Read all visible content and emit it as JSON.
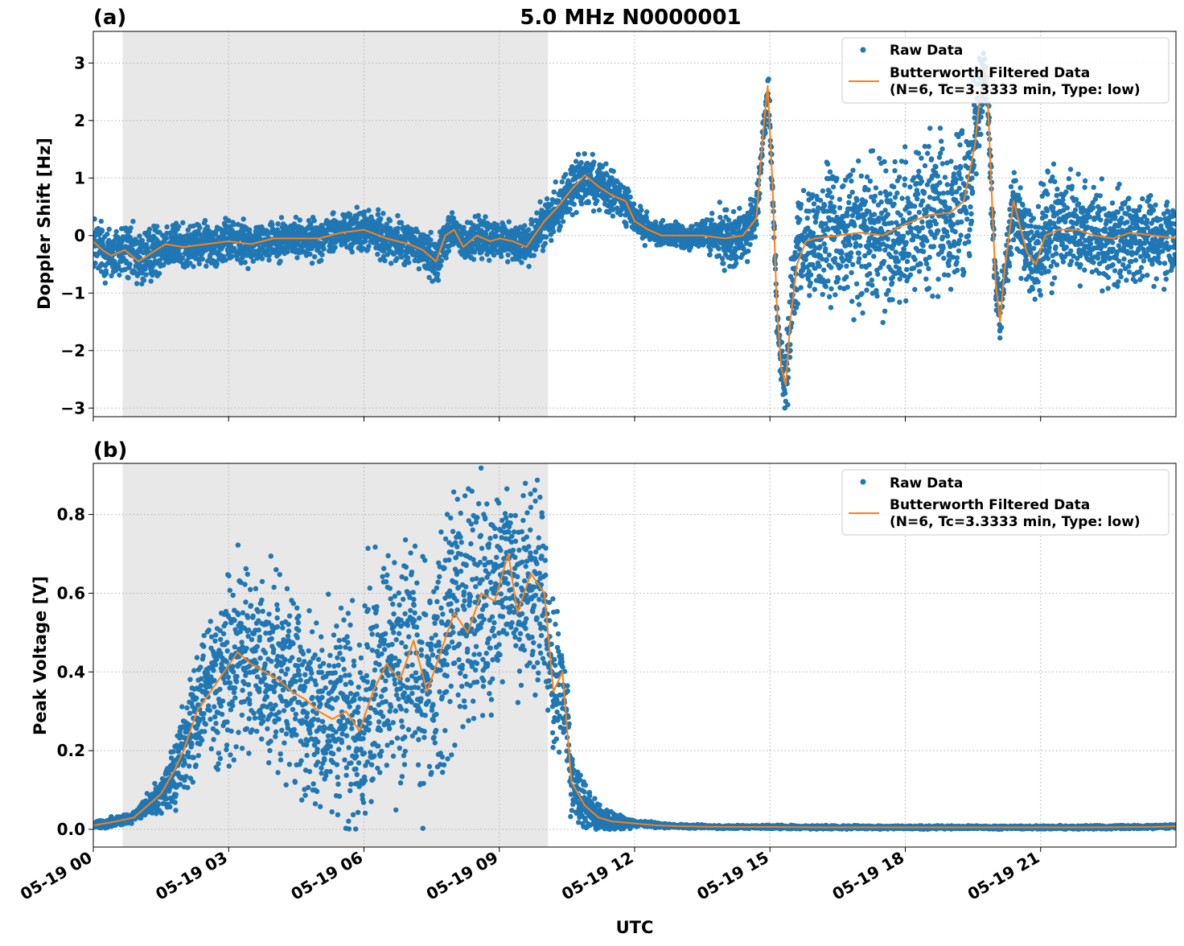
{
  "title": "5.0 MHz N0000001",
  "colors": {
    "raw": "#1f77b4",
    "filtered": "#ff7f0e",
    "daytime_shade": "#e8e8e8",
    "grid": "#b0b0b0"
  },
  "x_axis": {
    "label": "UTC",
    "range_hours": [
      0,
      24
    ],
    "ticks": [
      {
        "hour": 0,
        "label": "05-19 00"
      },
      {
        "hour": 3,
        "label": "05-19 03"
      },
      {
        "hour": 6,
        "label": "05-19 06"
      },
      {
        "hour": 9,
        "label": "05-19 09"
      },
      {
        "hour": 12,
        "label": "05-19 12"
      },
      {
        "hour": 15,
        "label": "05-19 15"
      },
      {
        "hour": 18,
        "label": "05-19 18"
      },
      {
        "hour": 21,
        "label": "05-19 21"
      }
    ]
  },
  "shaded_region_hours": [
    0.65,
    10.08
  ],
  "chart_data": [
    {
      "type": "scatter",
      "panel_label": "(a)",
      "ylabel": "Doppler Shift [Hz]",
      "ylim": [
        -3.15,
        3.55
      ],
      "yticks": [
        {
          "value": -3,
          "label": "−3"
        },
        {
          "value": -2,
          "label": "−2"
        },
        {
          "value": -1,
          "label": "−1"
        },
        {
          "value": 0,
          "label": "0"
        },
        {
          "value": 1,
          "label": "1"
        },
        {
          "value": 2,
          "label": "2"
        },
        {
          "value": 3,
          "label": "3"
        }
      ],
      "grid": true,
      "legend_position": "top-right",
      "legend": {
        "raw": "Raw Data",
        "filtered_line1": "Butterworth Filtered Data",
        "filtered_line2": "(N=6, Tc=3.3333 min, Type: low)"
      },
      "series": [
        {
          "name": "Butterworth Filtered Data",
          "x_hours": [
            0,
            0.2,
            0.4,
            0.7,
            1.0,
            1.3,
            1.6,
            2.0,
            2.5,
            3.0,
            3.5,
            4.0,
            4.5,
            5.0,
            5.5,
            6.0,
            6.5,
            7.0,
            7.3,
            7.6,
            7.8,
            8.0,
            8.2,
            8.5,
            8.8,
            9.0,
            9.3,
            9.6,
            10.0,
            10.3,
            10.6,
            10.9,
            11.2,
            11.5,
            11.8,
            12.0,
            12.3,
            12.6,
            13.0,
            13.5,
            14.0,
            14.4,
            14.7,
            14.85,
            14.95,
            15.05,
            15.15,
            15.25,
            15.35,
            15.45,
            15.6,
            15.8,
            16.0,
            16.5,
            17.0,
            17.5,
            18.0,
            18.5,
            19.0,
            19.3,
            19.55,
            19.7,
            19.8,
            19.9,
            20.0,
            20.1,
            20.2,
            20.3,
            20.4,
            20.5,
            20.7,
            20.9,
            21.1,
            21.4,
            21.8,
            22.2,
            22.6,
            23.0,
            23.5,
            24.0
          ],
          "values": [
            -0.1,
            -0.25,
            -0.35,
            -0.25,
            -0.45,
            -0.3,
            -0.15,
            -0.2,
            -0.15,
            -0.1,
            -0.15,
            -0.05,
            -0.05,
            -0.05,
            0.05,
            0.1,
            -0.05,
            -0.15,
            -0.25,
            -0.45,
            0.0,
            0.1,
            -0.2,
            0.0,
            -0.1,
            -0.05,
            -0.1,
            -0.2,
            0.25,
            0.5,
            0.8,
            1.05,
            0.85,
            0.7,
            0.6,
            0.25,
            0.1,
            0.0,
            0.0,
            0.0,
            -0.05,
            0.0,
            0.3,
            1.8,
            2.6,
            1.0,
            -1.2,
            -2.3,
            -2.6,
            -1.5,
            -0.5,
            -0.1,
            -0.05,
            0.0,
            0.05,
            0.0,
            0.2,
            0.35,
            0.4,
            0.6,
            1.6,
            2.8,
            2.9,
            1.0,
            -0.8,
            -1.5,
            -0.6,
            0.0,
            0.6,
            0.3,
            -0.3,
            -0.5,
            0.0,
            0.1,
            0.1,
            0.0,
            -0.05,
            0.05,
            0.0,
            -0.05
          ]
        },
        {
          "name": "Raw Data",
          "spread_hours": [
            0,
            1.0,
            2.0,
            5.0,
            7.0,
            8.5,
            9.5,
            10.5,
            11.5,
            12.5,
            13.5,
            14.0,
            14.8,
            15.2,
            15.6,
            16.5,
            18.0,
            19.5,
            19.8,
            20.2,
            21.0,
            22.0,
            24.0
          ],
          "spread_values": [
            0.6,
            0.6,
            0.45,
            0.4,
            0.45,
            0.4,
            0.4,
            0.55,
            0.5,
            0.25,
            0.3,
            0.6,
            0.5,
            0.4,
            1.3,
            1.4,
            1.5,
            1.5,
            0.6,
            0.6,
            1.2,
            1.0,
            0.8
          ]
        }
      ]
    },
    {
      "type": "scatter",
      "panel_label": "(b)",
      "ylabel": "Peak Voltage [V]",
      "ylim": [
        -0.045,
        0.93
      ],
      "yticks": [
        {
          "value": 0.0,
          "label": "0.0"
        },
        {
          "value": 0.2,
          "label": "0.2"
        },
        {
          "value": 0.4,
          "label": "0.4"
        },
        {
          "value": 0.6,
          "label": "0.6"
        },
        {
          "value": 0.8,
          "label": "0.8"
        }
      ],
      "grid": true,
      "legend_position": "top-right",
      "legend": {
        "raw": "Raw Data",
        "filtered_line1": "Butterworth Filtered Data",
        "filtered_line2": "(N=6, Tc=3.3333 min, Type: low)"
      },
      "series": [
        {
          "name": "Butterworth Filtered Data",
          "x_hours": [
            0,
            0.5,
            0.9,
            1.2,
            1.5,
            1.8,
            2.0,
            2.3,
            2.6,
            2.9,
            3.2,
            3.5,
            3.8,
            4.1,
            4.4,
            4.7,
            5.0,
            5.3,
            5.6,
            5.9,
            6.2,
            6.5,
            6.8,
            7.1,
            7.4,
            7.7,
            8.0,
            8.3,
            8.6,
            8.9,
            9.2,
            9.4,
            9.7,
            10.0,
            10.2,
            10.4,
            10.6,
            10.9,
            11.2,
            11.5,
            12.0,
            12.5,
            13.0,
            14.0,
            15.0,
            16.0,
            18.0,
            20.0,
            22.0,
            23.5,
            24.0
          ],
          "values": [
            0.01,
            0.02,
            0.03,
            0.06,
            0.09,
            0.15,
            0.2,
            0.3,
            0.35,
            0.4,
            0.45,
            0.42,
            0.4,
            0.38,
            0.35,
            0.33,
            0.3,
            0.28,
            0.3,
            0.25,
            0.35,
            0.42,
            0.38,
            0.48,
            0.35,
            0.45,
            0.55,
            0.5,
            0.6,
            0.58,
            0.7,
            0.55,
            0.65,
            0.6,
            0.35,
            0.4,
            0.12,
            0.06,
            0.03,
            0.02,
            0.015,
            0.01,
            0.008,
            0.006,
            0.006,
            0.005,
            0.005,
            0.005,
            0.005,
            0.006,
            0.008
          ]
        },
        {
          "name": "Raw Data",
          "spread_hours": [
            0,
            1.0,
            1.5,
            2.0,
            3.0,
            5.0,
            6.0,
            7.0,
            8.0,
            9.0,
            10.0,
            10.6,
            11.0,
            11.5,
            12.0,
            13.0,
            24.0
          ],
          "spread_values": [
            0.01,
            0.02,
            0.05,
            0.15,
            0.3,
            0.25,
            0.35,
            0.35,
            0.4,
            0.3,
            0.28,
            0.12,
            0.05,
            0.03,
            0.01,
            0.005,
            0.005
          ]
        }
      ]
    }
  ]
}
